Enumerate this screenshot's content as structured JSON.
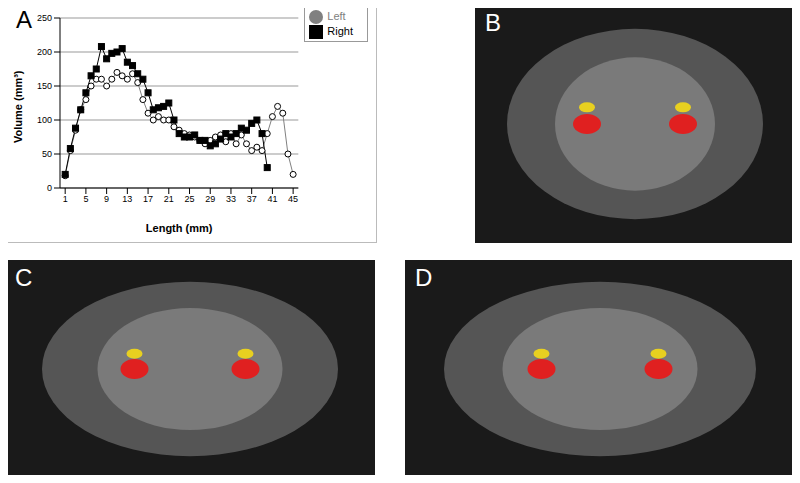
{
  "chart_data": {
    "type": "line",
    "panel_label": "A",
    "x_label": "Length (mm)",
    "y_label": "Volume (mm³)",
    "x": [
      1,
      2,
      3,
      4,
      5,
      6,
      7,
      8,
      9,
      10,
      11,
      12,
      13,
      14,
      15,
      16,
      17,
      18,
      19,
      20,
      21,
      22,
      23,
      24,
      25,
      26,
      27,
      28,
      29,
      30,
      31,
      32,
      33,
      34,
      35,
      36,
      37,
      38,
      39,
      40,
      41,
      42,
      43,
      44,
      45
    ],
    "series": [
      {
        "name": "Left",
        "color": "#808080",
        "marker": "circle",
        "values": [
          18,
          55,
          85,
          115,
          130,
          150,
          160,
          160,
          150,
          160,
          170,
          165,
          160,
          168,
          155,
          130,
          110,
          100,
          105,
          100,
          100,
          90,
          85,
          80,
          78,
          75,
          70,
          65,
          70,
          75,
          78,
          68,
          80,
          65,
          78,
          65,
          55,
          60,
          55,
          80,
          105,
          120,
          110,
          50,
          20
        ]
      },
      {
        "name": "Right",
        "color": "#000000",
        "marker": "square",
        "values": [
          20,
          58,
          88,
          115,
          140,
          165,
          175,
          208,
          190,
          198,
          200,
          205,
          185,
          180,
          168,
          160,
          140,
          115,
          118,
          120,
          125,
          100,
          80,
          75,
          75,
          78,
          70,
          70,
          62,
          65,
          72,
          80,
          75,
          80,
          88,
          85,
          95,
          100,
          80,
          30,
          null,
          null,
          null,
          null,
          null
        ]
      }
    ],
    "xlim": [
      0,
      46
    ],
    "xticks": [
      1,
      5,
      9,
      13,
      17,
      21,
      25,
      29,
      33,
      37,
      41,
      45
    ],
    "ylim": [
      0,
      250
    ],
    "yticks": [
      0,
      50,
      100,
      150,
      200,
      250
    ],
    "grid": true,
    "legend": "top-right"
  },
  "image_panels": [
    "B",
    "C",
    "D"
  ]
}
